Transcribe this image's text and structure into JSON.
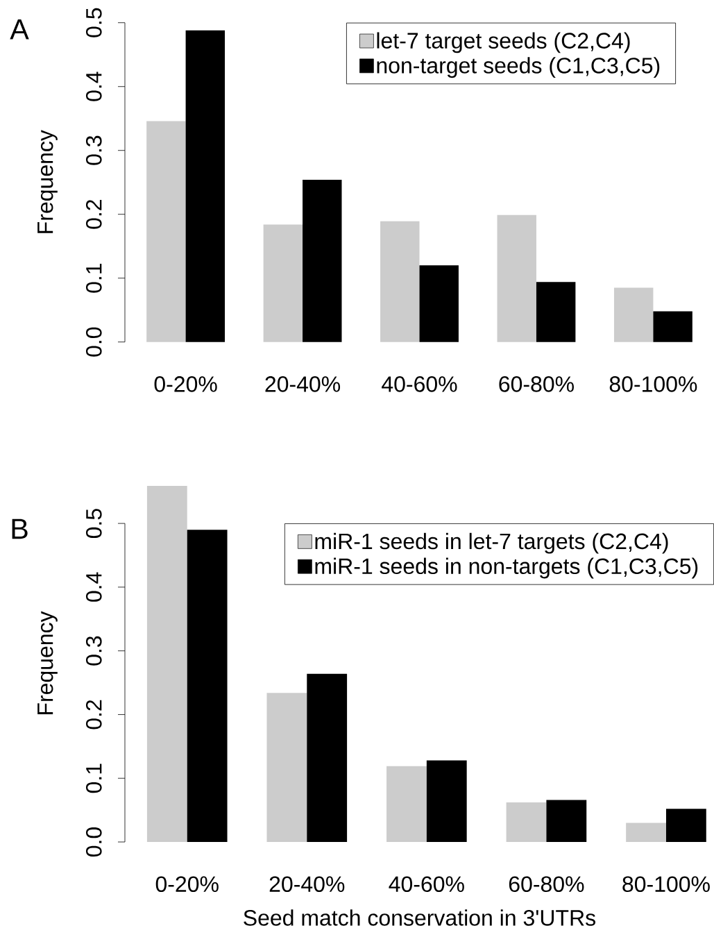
{
  "chart_data": [
    {
      "type": "bar",
      "title": "A",
      "ylabel": "Frequency",
      "categories": [
        "0-20%",
        "20-40%",
        "40-60%",
        "60-80%",
        "80-100%"
      ],
      "series": [
        {
          "name": "let-7 target seeds (C2,C4)",
          "color": "#cccccc",
          "values": [
            0.346,
            0.184,
            0.189,
            0.199,
            0.085
          ]
        },
        {
          "name": "non-target seeds (C1,C3,C5)",
          "color": "#000000",
          "values": [
            0.488,
            0.254,
            0.12,
            0.094,
            0.048
          ]
        }
      ],
      "ylim": [
        0,
        0.5
      ],
      "yticks": [
        {
          "value": 0,
          "label": "0.0"
        },
        0.1,
        0.2,
        0.3,
        0.4,
        0.5
      ],
      "legend": "top right"
    },
    {
      "type": "bar",
      "title": "B",
      "ylabel": "Frequency",
      "xlabel": "Seed match conservation in 3'UTRs",
      "categories": [
        "0-20%",
        "20-40%",
        "40-60%",
        "60-80%",
        "80-100%"
      ],
      "series": [
        {
          "name": "miR-1 seeds in let-7 targets (C2,C4)",
          "color": "#cccccc",
          "values": [
            0.559,
            0.234,
            0.119,
            0.062,
            0.03
          ]
        },
        {
          "name": "miR-1 seeds in non-targets (C1,C3,C5)",
          "color": "#000000",
          "values": [
            0.49,
            0.264,
            0.128,
            0.066,
            0.052
          ]
        }
      ],
      "ylim": [
        0,
        0.56
      ],
      "yticks": [
        {
          "value": 0,
          "label": "0.0"
        },
        0.1,
        0.2,
        0.3,
        0.4,
        0.5
      ],
      "legend": "top right"
    }
  ]
}
